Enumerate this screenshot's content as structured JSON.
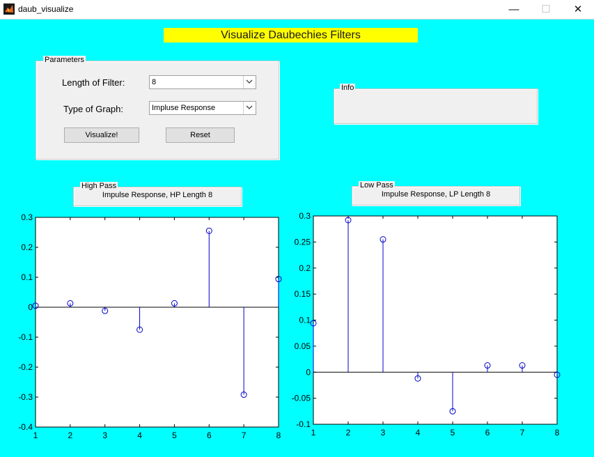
{
  "window": {
    "title": "daub_visualize",
    "minimize": "—",
    "maximize": "☐",
    "close": "✕"
  },
  "banner": {
    "text": "Visualize Daubechies Filters"
  },
  "parameters": {
    "title": "Parameters",
    "length_label": "Length of Filter:",
    "length_value": "8",
    "graph_label": "Type of Graph:",
    "graph_value": "Impluse Response",
    "visualize_button": "Visualize!",
    "reset_button": "Reset"
  },
  "info": {
    "title": "Info",
    "text": ""
  },
  "high_pass": {
    "title": "High Pass",
    "text": "Impulse Response, HP Length 8"
  },
  "low_pass": {
    "title": "Low Pass",
    "text": "Impulse Response, LP Length 8"
  },
  "colors": {
    "background": "#00ffff",
    "banner": "#ffff00",
    "stem": "#0000cc"
  },
  "chart_data": [
    {
      "type": "stem",
      "x": [
        1,
        2,
        3,
        4,
        5,
        6,
        7,
        8
      ],
      "values": [
        0.005,
        0.013,
        -0.012,
        -0.075,
        0.013,
        0.255,
        -0.292,
        0.094
      ],
      "xlim": [
        1,
        8
      ],
      "ylim": [
        -0.4,
        0.3
      ],
      "xticks": [
        "1",
        "2",
        "3",
        "4",
        "5",
        "6",
        "7",
        "8"
      ],
      "yticks": [
        "0.3",
        "0.2",
        "0.1",
        "0",
        "-0.1",
        "-0.2",
        "-0.3",
        "-0.4"
      ],
      "ytick_values": [
        0.3,
        0.2,
        0.1,
        0,
        -0.1,
        -0.2,
        -0.3,
        -0.4
      ]
    },
    {
      "type": "stem",
      "x": [
        1,
        2,
        3,
        4,
        5,
        6,
        7,
        8
      ],
      "values": [
        0.094,
        0.292,
        0.255,
        -0.012,
        -0.075,
        0.013,
        0.013,
        -0.005
      ],
      "xlim": [
        1,
        8
      ],
      "ylim": [
        -0.1,
        0.3
      ],
      "xticks": [
        "1",
        "2",
        "3",
        "4",
        "5",
        "6",
        "7",
        "8"
      ],
      "yticks": [
        "0.3",
        "0.25",
        "0.2",
        "0.15",
        "0.1",
        "0.05",
        "0",
        "-0.05",
        "-0.1"
      ],
      "ytick_values": [
        0.3,
        0.25,
        0.2,
        0.15,
        0.1,
        0.05,
        0,
        -0.05,
        -0.1
      ]
    }
  ]
}
